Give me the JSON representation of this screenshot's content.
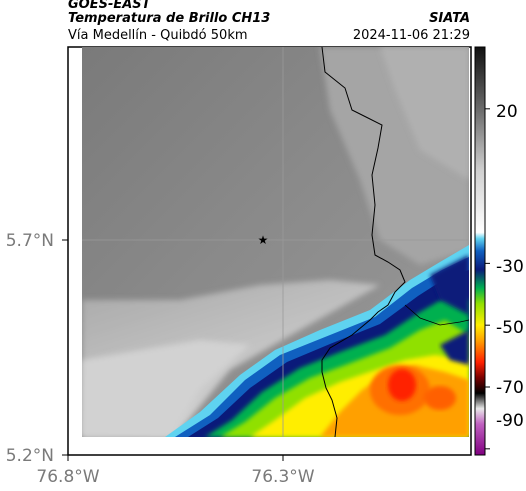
{
  "header": {
    "satellite": "GOES-EAST",
    "product": "Temperatura de Brillo CH13",
    "region": "Vía Medellín - Quibdó 50km",
    "organization": "SIATA",
    "datetime": "2024-11-06 21:29"
  },
  "axes": {
    "lat_ticks": [
      "5.7°N",
      "5.2°N"
    ],
    "lon_ticks": [
      "76.8°W",
      "76.3°W"
    ]
  },
  "colorbar": {
    "tick_labels": [
      "20",
      "-30",
      "-50",
      "-70",
      "-90"
    ],
    "stops": [
      {
        "value": 40,
        "color": "#111111"
      },
      {
        "value": 20,
        "color": "#6a6a6a"
      },
      {
        "value": 0,
        "color": "#d0d0d0"
      },
      {
        "value": -20,
        "color": "#ffffff"
      },
      {
        "value": -22,
        "color": "#5fd3f0"
      },
      {
        "value": -26,
        "color": "#1060c0"
      },
      {
        "value": -32,
        "color": "#0a1a7a"
      },
      {
        "value": -38,
        "color": "#00b050"
      },
      {
        "value": -43,
        "color": "#90e000"
      },
      {
        "value": -50,
        "color": "#ffee00"
      },
      {
        "value": -55,
        "color": "#ffa000"
      },
      {
        "value": -62,
        "color": "#ff2000"
      },
      {
        "value": -67,
        "color": "#7a0000"
      },
      {
        "value": -72,
        "color": "#000000"
      },
      {
        "value": -77,
        "color": "#e8e8e8"
      },
      {
        "value": -82,
        "color": "#c060c0"
      },
      {
        "value": -92,
        "color": "#800080"
      }
    ]
  },
  "marker": {
    "name": "star-marker",
    "symbol": "★"
  }
}
